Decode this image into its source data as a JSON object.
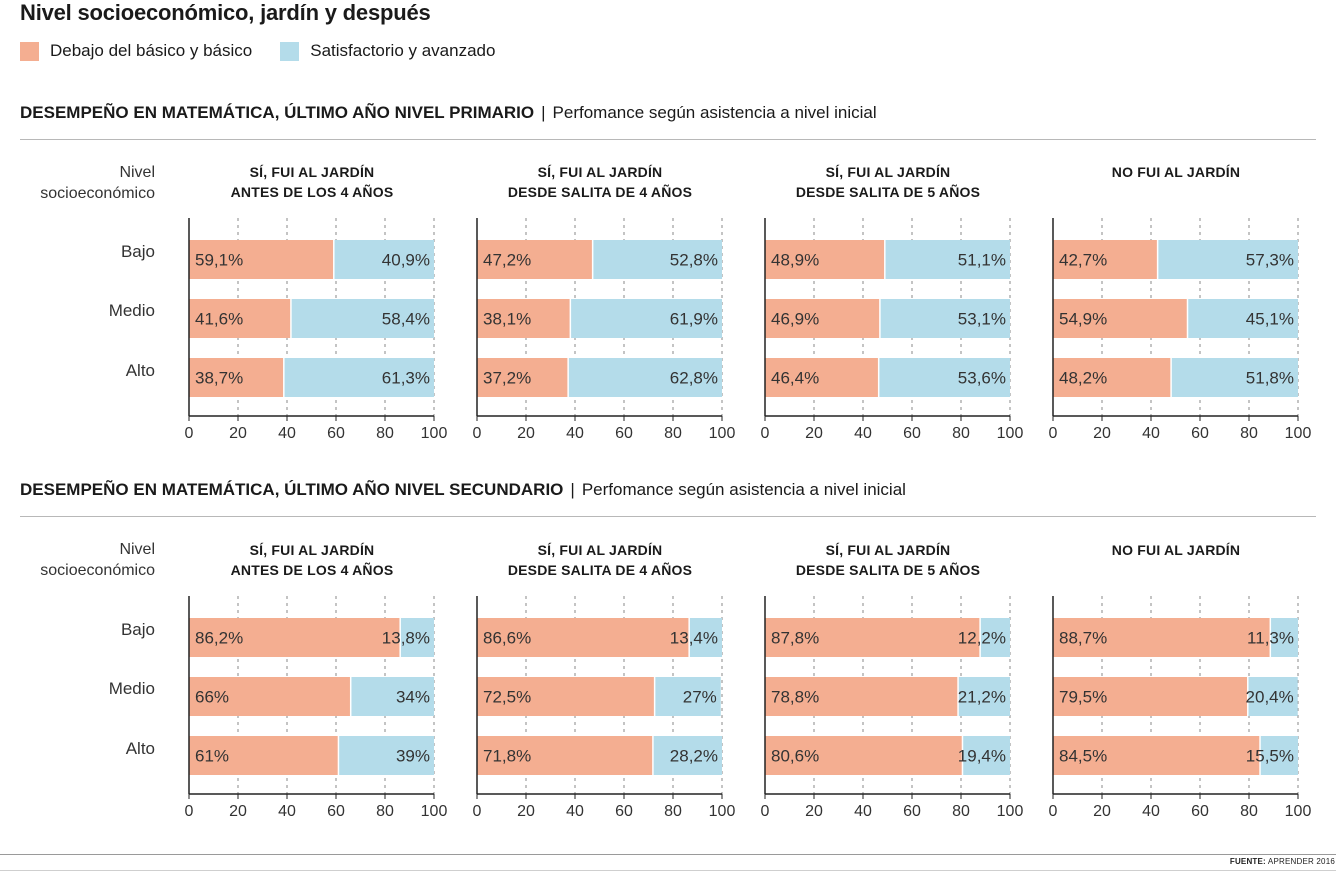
{
  "title": "Nivel socioeconómico, jardín y después",
  "legend": {
    "below_label": "Debajo del básico y básico",
    "above_label": "Satisfactorio y avanzado"
  },
  "colors": {
    "below": "#f4ae91",
    "above": "#b4dcea",
    "grid": "#8a8a8a"
  },
  "row_header": {
    "line1": "Nivel",
    "line2": "socioeconómico"
  },
  "levels": [
    "Bajo",
    "Medio",
    "Alto"
  ],
  "source": {
    "label": "FUENTE:",
    "value": "APRENDER 2016"
  },
  "chart_data": [
    {
      "type": "bar",
      "stacked": true,
      "orientation": "horizontal",
      "title_bold": "DESEMPEÑO EN MATEMÁTICA, ÚLTIMO AÑO NIVEL PRIMARIO",
      "separator": "|",
      "subtitle": "Perfomance según asistencia a nivel inicial",
      "categories": [
        "Bajo",
        "Medio",
        "Alto"
      ],
      "xlim": [
        0,
        100
      ],
      "xticks": [
        "0",
        "20",
        "40",
        "60",
        "80",
        "100"
      ],
      "panels": [
        {
          "title1": "SÍ, FUI AL JARDÍN",
          "title2": "ANTES DE LOS 4 AÑOS",
          "series": [
            {
              "name": "Debajo del básico y básico",
              "values": [
                59.1,
                41.6,
                38.7
              ],
              "labels": [
                "59,1%",
                "41,6%",
                "38,7%"
              ]
            },
            {
              "name": "Satisfactorio y avanzado",
              "values": [
                40.9,
                58.4,
                61.3
              ],
              "labels": [
                "40,9%",
                "58,4%",
                "61,3%"
              ]
            }
          ]
        },
        {
          "title1": "SÍ, FUI AL JARDÍN",
          "title2": "DESDE SALITA DE 4 AÑOS",
          "series": [
            {
              "name": "Debajo del básico y básico",
              "values": [
                47.2,
                38.1,
                37.2
              ],
              "labels": [
                "47,2%",
                "38,1%",
                "37,2%"
              ]
            },
            {
              "name": "Satisfactorio y avanzado",
              "values": [
                52.8,
                61.9,
                62.8
              ],
              "labels": [
                "52,8%",
                "61,9%",
                "62,8%"
              ]
            }
          ]
        },
        {
          "title1": "SÍ, FUI AL JARDÍN",
          "title2": "DESDE SALITA DE 5 AÑOS",
          "series": [
            {
              "name": "Debajo del básico y básico",
              "values": [
                48.9,
                46.9,
                46.4
              ],
              "labels": [
                "48,9%",
                "46,9%",
                "46,4%"
              ]
            },
            {
              "name": "Satisfactorio y avanzado",
              "values": [
                51.1,
                53.1,
                53.6
              ],
              "labels": [
                "51,1%",
                "53,1%",
                "53,6%"
              ]
            }
          ]
        },
        {
          "title1": "NO FUI AL JARDÍN",
          "title2": "",
          "series": [
            {
              "name": "Debajo del básico y básico",
              "values": [
                42.7,
                54.9,
                48.2
              ],
              "labels": [
                "42,7%",
                "54,9%",
                "48,2%"
              ]
            },
            {
              "name": "Satisfactorio y avanzado",
              "values": [
                57.3,
                45.1,
                51.8
              ],
              "labels": [
                "57,3%",
                "45,1%",
                "51,8%"
              ]
            }
          ]
        }
      ]
    },
    {
      "type": "bar",
      "stacked": true,
      "orientation": "horizontal",
      "title_bold": "DESEMPEÑO EN MATEMÁTICA, ÚLTIMO AÑO NIVEL SECUNDARIO",
      "separator": "|",
      "subtitle": "Perfomance según asistencia a nivel inicial",
      "categories": [
        "Bajo",
        "Medio",
        "Alto"
      ],
      "xlim": [
        0,
        100
      ],
      "xticks": [
        "0",
        "20",
        "40",
        "60",
        "80",
        "100"
      ],
      "panels": [
        {
          "title1": "SÍ, FUI AL JARDÍN",
          "title2": "ANTES DE LOS 4 AÑOS",
          "series": [
            {
              "name": "Debajo del básico y básico",
              "values": [
                86.2,
                66,
                61
              ],
              "labels": [
                "86,2%",
                "66%",
                "61%"
              ]
            },
            {
              "name": "Satisfactorio y avanzado",
              "values": [
                13.8,
                34,
                39
              ],
              "labels": [
                "13,8%",
                "34%",
                "39%"
              ]
            }
          ]
        },
        {
          "title1": "SÍ, FUI AL JARDÍN",
          "title2": "DESDE SALITA DE 4 AÑOS",
          "series": [
            {
              "name": "Debajo del básico y básico",
              "values": [
                86.6,
                72.5,
                71.8
              ],
              "labels": [
                "86,6%",
                "72,5%",
                "71,8%"
              ]
            },
            {
              "name": "Satisfactorio y avanzado",
              "values": [
                13.4,
                27,
                28.2
              ],
              "labels": [
                "13,4%",
                "27%",
                "28,2%"
              ]
            }
          ]
        },
        {
          "title1": "SÍ, FUI AL JARDÍN",
          "title2": "DESDE SALITA DE 5 AÑOS",
          "series": [
            {
              "name": "Debajo del básico y básico",
              "values": [
                87.8,
                78.8,
                80.6
              ],
              "labels": [
                "87,8%",
                "78,8%",
                "80,6%"
              ]
            },
            {
              "name": "Satisfactorio y avanzado",
              "values": [
                12.2,
                21.2,
                19.4
              ],
              "labels": [
                "12,2%",
                "21,2%",
                "19,4%"
              ]
            }
          ]
        },
        {
          "title1": "NO FUI AL JARDÍN",
          "title2": "",
          "series": [
            {
              "name": "Debajo del básico y básico",
              "values": [
                88.7,
                79.5,
                84.5
              ],
              "labels": [
                "88,7%",
                "79,5%",
                "84,5%"
              ]
            },
            {
              "name": "Satisfactorio y avanzado",
              "values": [
                11.3,
                20.4,
                15.5
              ],
              "labels": [
                "11,3%",
                "20,4%",
                "15,5%"
              ]
            }
          ]
        }
      ]
    }
  ]
}
